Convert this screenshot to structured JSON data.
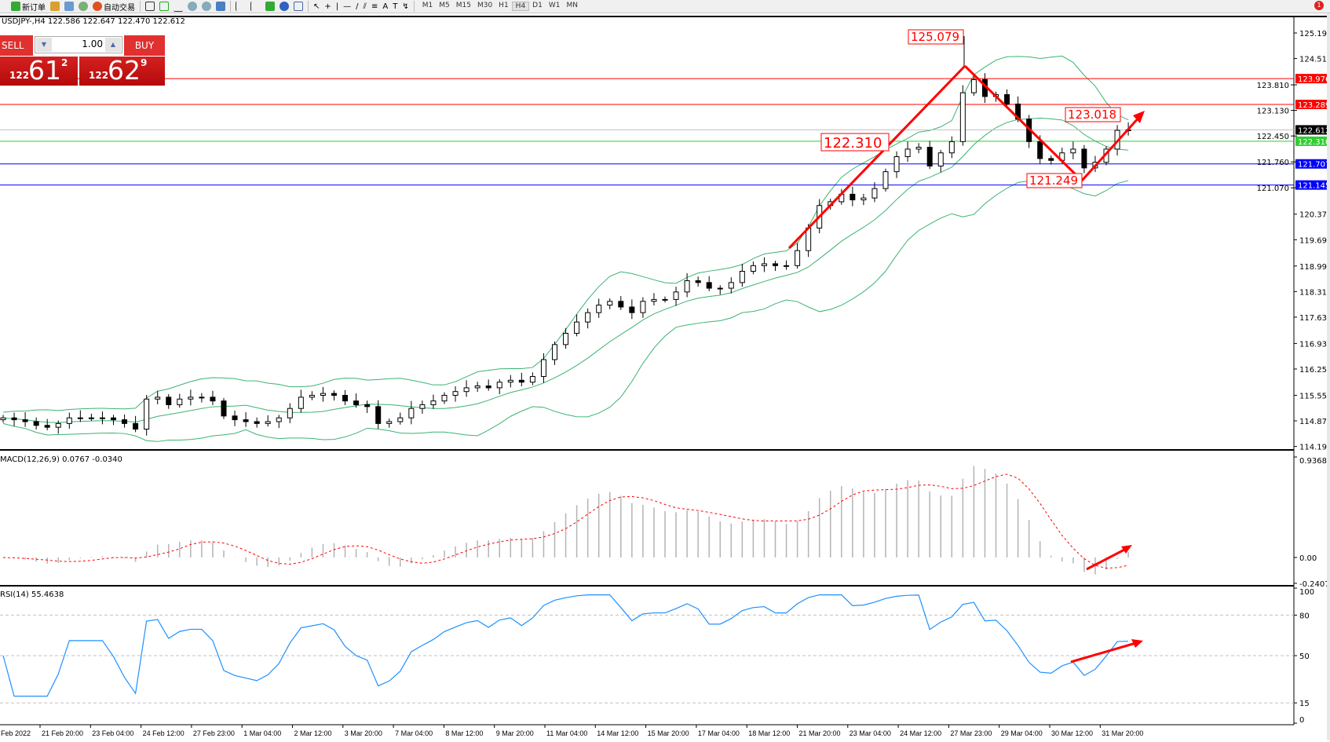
{
  "toolbar": {
    "new_order": "新订单",
    "auto_trading": "自动交易",
    "timeframes": [
      "M1",
      "M5",
      "M15",
      "M30",
      "H1",
      "H4",
      "D1",
      "W1",
      "MN"
    ],
    "active_timeframe": "H4",
    "notification_count": "1"
  },
  "chart_info": "USDJPY-,H4  122.586 122.647 122.470 122.612",
  "one_click": {
    "sell_label": "SELL",
    "buy_label": "BUY",
    "lot": "1.00",
    "sell_price": {
      "prefix": "122",
      "big": "61",
      "sup": "2"
    },
    "buy_price": {
      "prefix": "122",
      "big": "62",
      "sup": "9"
    }
  },
  "colors": {
    "bands": "#3cb371",
    "rsi": "#1e90ff",
    "macd_hist": "#b4b4b4",
    "macd_signal": "#ff0000",
    "annotation": "#ff0000"
  },
  "chart_data": {
    "type": "candlestick",
    "symbol": "USDJPY-",
    "timeframe": "H4",
    "ylim": [
      114.19,
      125.19
    ],
    "y_ticks": [
      "125.190",
      "124.510",
      "123.810",
      "123.130",
      "122.450",
      "121.760",
      "121.070",
      "120.370",
      "119.690",
      "118.990",
      "118.310",
      "117.630",
      "116.930",
      "116.250",
      "115.550",
      "114.870",
      "114.190"
    ],
    "x_ticks": [
      "Feb 2022",
      "21 Feb 20:00",
      "23 Feb 04:00",
      "24 Feb 12:00",
      "27 Feb 23:00",
      "1 Mar 04:00",
      "2 Mar 12:00",
      "3 Mar 20:00",
      "7 Mar 04:00",
      "8 Mar 12:00",
      "9 Mar 20:00",
      "11 Mar 04:00",
      "14 Mar 12:00",
      "15 Mar 20:00",
      "17 Mar 04:00",
      "18 Mar 12:00",
      "21 Mar 20:00",
      "23 Mar 04:00",
      "24 Mar 12:00",
      "27 Mar 23:00",
      "29 Mar 04:00",
      "30 Mar 12:00",
      "31 Mar 20:00"
    ],
    "closes": [
      114.95,
      114.9,
      114.85,
      114.75,
      114.7,
      114.8,
      114.95,
      114.95,
      114.95,
      114.95,
      114.9,
      114.8,
      114.65,
      115.45,
      115.5,
      115.3,
      115.45,
      115.5,
      115.5,
      115.4,
      115.0,
      114.9,
      114.85,
      114.8,
      114.85,
      114.95,
      115.2,
      115.5,
      115.55,
      115.6,
      115.55,
      115.4,
      115.3,
      115.25,
      114.8,
      114.85,
      114.95,
      115.2,
      115.3,
      115.4,
      115.55,
      115.65,
      115.75,
      115.8,
      115.75,
      115.9,
      115.95,
      115.9,
      116.05,
      116.5,
      116.9,
      117.2,
      117.5,
      117.75,
      117.95,
      118.05,
      117.9,
      117.75,
      118.05,
      118.1,
      118.1,
      118.3,
      118.6,
      118.55,
      118.4,
      118.4,
      118.55,
      118.85,
      119.0,
      119.05,
      119.0,
      119.0,
      119.4,
      120.0,
      120.6,
      120.7,
      120.9,
      120.75,
      120.8,
      121.05,
      121.5,
      121.9,
      122.1,
      122.15,
      121.65,
      122.0,
      122.3,
      123.6,
      123.95,
      123.5,
      123.55,
      123.3,
      122.9,
      122.3,
      121.85,
      121.8,
      122.0,
      122.1,
      121.6,
      121.75,
      122.1,
      122.6,
      122.612
    ],
    "overlay": "Bollinger Bands",
    "horizontal_lines": [
      {
        "price": "123.976",
        "color": "#ff0000"
      },
      {
        "price": "123.289",
        "color": "#ff0000"
      },
      {
        "price": "122.612",
        "color": "#000000",
        "line": "#c0c0c0"
      },
      {
        "price": "122.310",
        "color": "#32cd32"
      },
      {
        "price": "121.707",
        "color": "#0000ff"
      },
      {
        "price": "121.145",
        "color": "#0000ff"
      }
    ],
    "annotations": [
      {
        "text": "125.079",
        "price": 125.079
      },
      {
        "text": "122.310",
        "price": 122.31
      },
      {
        "text": "123.018",
        "price": 123.018
      },
      {
        "text": "121.249",
        "price": 121.249
      }
    ],
    "macd": {
      "label": "MACD(12,26,9) 0.0767 -0.0340",
      "ticks": [
        "0.9368",
        "0.00",
        "-0.2407"
      ],
      "ylim": [
        -0.2407,
        0.9368
      ]
    },
    "rsi": {
      "label": "RSI(14) 55.4638",
      "ticks": [
        "100",
        "80",
        "50",
        "15",
        "0"
      ],
      "levels": [
        80,
        50,
        15
      ],
      "ylim": [
        0,
        100
      ]
    }
  }
}
